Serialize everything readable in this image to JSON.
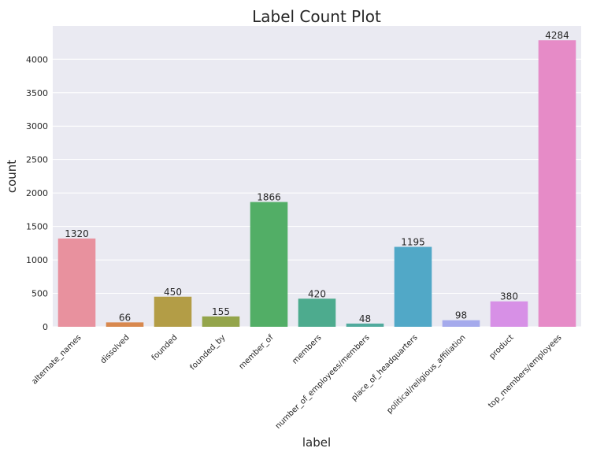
{
  "chart_data": {
    "type": "bar",
    "title": "Label Count Plot",
    "xlabel": "label",
    "ylabel": "count",
    "categories": [
      "alternate_names",
      "dissolved",
      "founded",
      "founded_by",
      "member_of",
      "members",
      "number_of_employees/members",
      "place_of_headquarters",
      "political/religious_affiliation",
      "product",
      "top_members/employees"
    ],
    "values": [
      1320,
      66,
      450,
      155,
      1866,
      420,
      48,
      1195,
      98,
      380,
      4284
    ],
    "colors": [
      "#e8919e",
      "#d8884e",
      "#b39d46",
      "#94a54b",
      "#52ae66",
      "#4dab8e",
      "#50aa9d",
      "#51a8c7",
      "#a5aaec",
      "#d790e6",
      "#e68bc7"
    ],
    "yticks": [
      0,
      500,
      1000,
      1500,
      2000,
      2500,
      3000,
      3500,
      4000
    ],
    "ylim": [
      0,
      4498
    ],
    "background": "#eaeaf2",
    "grid": true
  }
}
